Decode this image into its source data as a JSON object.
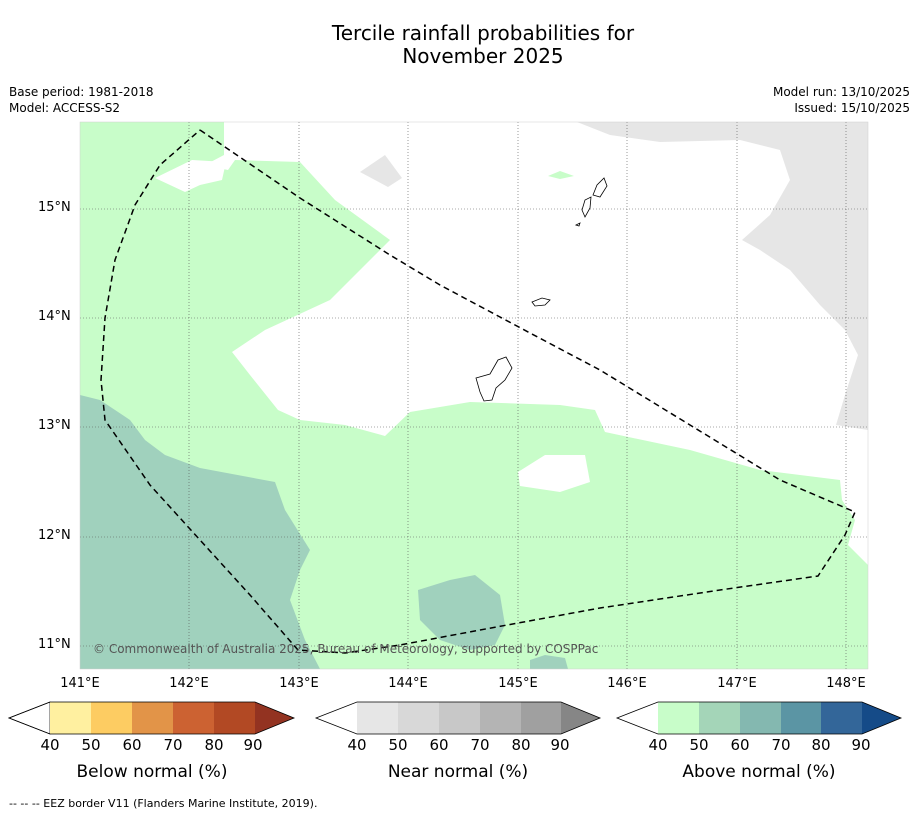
{
  "title_line1": "Tercile rainfall probabilities for",
  "title_line2": "November 2025",
  "meta_left": {
    "base_period": "Base period: 1981-2018",
    "model": "Model: ACCESS-S2"
  },
  "meta_right": {
    "model_run": "Model run: 13/10/2025",
    "issued": "Issued: 15/10/2025"
  },
  "copyright": "© Commonwealth of Australia 2025, Bureau of Meteorology, supported by COSPPac",
  "footer": "-- -- -- EEZ border V11 (Flanders Marine Institute, 2019).",
  "lat_labels": [
    "15°N",
    "14°N",
    "13°N",
    "12°N",
    "11°N"
  ],
  "lon_labels": [
    "141°E",
    "142°E",
    "143°E",
    "144°E",
    "145°E",
    "146°E",
    "147°E",
    "148°E"
  ],
  "map_extent": {
    "lon": [
      140.99,
      148.2
    ],
    "lat": [
      10.8,
      15.8
    ]
  },
  "colorbars": [
    {
      "title": "Below normal (%)",
      "ticks": [
        "40",
        "50",
        "60",
        "70",
        "80",
        "90"
      ],
      "colors": [
        "#ffffff",
        "#fff0a0",
        "#fdcc62",
        "#e29448",
        "#cc6232",
        "#b24924",
        "#933321"
      ]
    },
    {
      "title": "Near normal (%)",
      "ticks": [
        "40",
        "50",
        "60",
        "70",
        "80",
        "90"
      ],
      "colors": [
        "#ffffff",
        "#e6e6e6",
        "#d8d8d8",
        "#c8c8c8",
        "#b4b4b4",
        "#a0a0a0",
        "#868686"
      ]
    },
    {
      "title": "Above normal (%)",
      "ticks": [
        "40",
        "50",
        "60",
        "70",
        "80",
        "90"
      ],
      "colors": [
        "#ffffff",
        "#c8fdc9",
        "#a4d5b8",
        "#84b8b0",
        "#5b95a4",
        "#336699",
        "#154b88"
      ]
    }
  ]
}
